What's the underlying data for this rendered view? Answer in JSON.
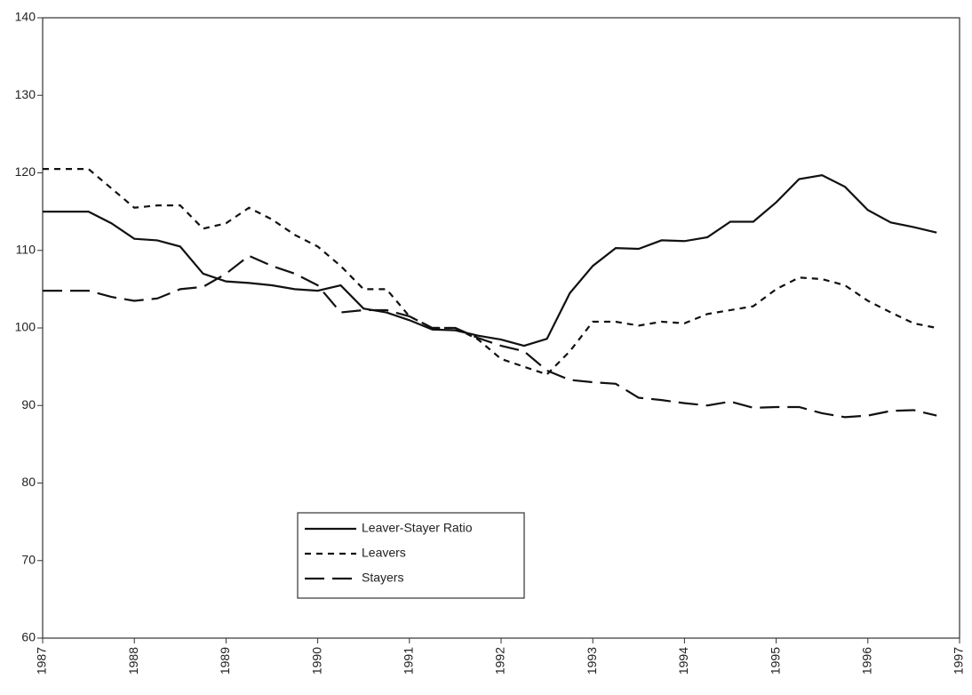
{
  "chart_data": {
    "type": "line",
    "x": [
      1987,
      1987.25,
      1987.5,
      1987.75,
      1988,
      1988.25,
      1988.5,
      1988.75,
      1989,
      1989.25,
      1989.5,
      1989.75,
      1990,
      1990.25,
      1990.5,
      1990.75,
      1991,
      1991.25,
      1991.5,
      1991.75,
      1992,
      1992.25,
      1992.5,
      1992.75,
      1993,
      1993.25,
      1993.5,
      1993.75,
      1994,
      1994.25,
      1994.5,
      1994.75,
      1995,
      1995.25,
      1995.5,
      1995.75,
      1996,
      1996.25,
      1996.5,
      1996.75
    ],
    "series": [
      {
        "name": "Leaver-Stayer Ratio",
        "color": "#111111",
        "dash": "solid",
        "values": [
          115,
          115,
          115,
          113.5,
          111.5,
          111.3,
          110.5,
          107,
          106,
          105.8,
          105.5,
          105,
          104.8,
          105.5,
          102.5,
          102,
          101,
          99.8,
          99.7,
          99,
          98.5,
          97.7,
          98.6,
          104.5,
          108,
          110.3,
          110.2,
          111.3,
          111.2,
          111.7,
          113.7,
          113.7,
          116.2,
          119.2,
          119.7,
          118.2,
          115.2,
          113.6,
          113,
          112.3
        ]
      },
      {
        "name": "Leavers",
        "color": "#111111",
        "dash": "dotted",
        "values": [
          120.5,
          120.5,
          120.5,
          118,
          115.5,
          115.8,
          115.8,
          112.8,
          113.5,
          115.5,
          114,
          112,
          110.5,
          108,
          105,
          105,
          101.5,
          100,
          100,
          98.5,
          96,
          95,
          94,
          97,
          100.8,
          100.8,
          100.3,
          100.8,
          100.6,
          101.8,
          102.3,
          102.8,
          105,
          106.5,
          106.3,
          105.5,
          103.5,
          102,
          100.6,
          100
        ]
      },
      {
        "name": "Stayers",
        "color": "#111111",
        "dash": "dashed",
        "values": [
          104.8,
          104.8,
          104.8,
          104,
          103.5,
          103.8,
          105,
          105.3,
          107,
          109.3,
          108,
          107,
          105.5,
          102,
          102.3,
          102.3,
          101.5,
          100,
          100,
          98.7,
          97.7,
          97,
          94.5,
          93.3,
          93,
          92.8,
          91,
          90.7,
          90.3,
          90,
          90.5,
          89.7,
          89.8,
          89.8,
          89,
          88.5,
          88.7,
          89.3,
          89.4,
          88.7
        ]
      }
    ],
    "xlim": [
      1987,
      1997
    ],
    "xticks": [
      1987,
      1988,
      1989,
      1990,
      1991,
      1992,
      1993,
      1994,
      1995,
      1996,
      1997
    ],
    "ylim": [
      60,
      140
    ],
    "yticks": [
      60,
      70,
      80,
      90,
      100,
      110,
      120,
      130,
      140
    ],
    "grid": false,
    "legend": "lower center"
  }
}
